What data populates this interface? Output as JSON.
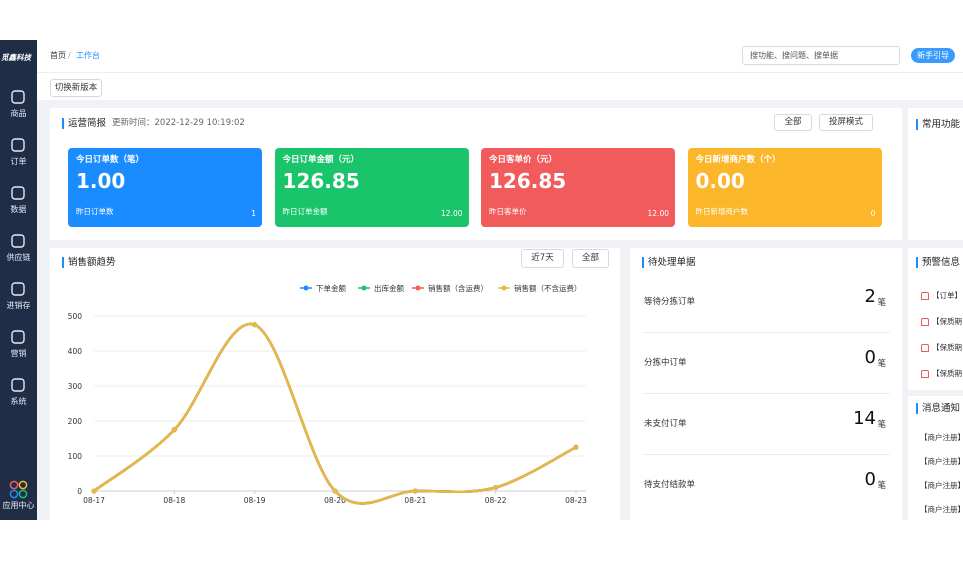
{
  "sidebar": {
    "logo": "觅鑫科技",
    "items": [
      "商品",
      "订单",
      "数据",
      "供应链",
      "进销存",
      "营销",
      "系统"
    ],
    "app_center": "应用中心"
  },
  "header": {
    "breadcrumb": [
      "首页",
      "工作台"
    ],
    "search_placeholder": "搜功能、搜问题、搜单据",
    "guide_button": "新手引导",
    "switch_button": "切换新版本"
  },
  "overview": {
    "title": "运营简报",
    "update_time": "更新时间：2022-12-29 10:19:02",
    "filter": "全部",
    "screen_mode": "投屏模式",
    "cards": [
      {
        "label": "今日订单数（笔）",
        "value": "1.00",
        "sub_label": "昨日订单数",
        "sub_value": "1",
        "color": "#1a8cff"
      },
      {
        "label": "今日订单金额（元）",
        "value": "126.85",
        "sub_label": "昨日订单金额",
        "sub_value": "12.00",
        "color": "#19c46b"
      },
      {
        "label": "今日客单价（元）",
        "value": "126.85",
        "sub_label": "昨日客单价",
        "sub_value": "12.00",
        "color": "#f25b5b"
      },
      {
        "label": "今日新增商户数（个）",
        "value": "0.00",
        "sub_label": "昨日新增商户数",
        "sub_value": "0",
        "color": "#fbb62a"
      }
    ]
  },
  "chart_data": {
    "type": "line",
    "title": "销售额趋势",
    "filters": [
      "近7天",
      "全部"
    ],
    "categories": [
      "08-17",
      "08-18",
      "08-19",
      "08-20",
      "08-21",
      "08-22",
      "08-23"
    ],
    "series": [
      {
        "name": "下单金额",
        "color": "#1a8cff",
        "values": [
          0,
          175,
          475,
          0,
          0,
          10,
          125
        ]
      },
      {
        "name": "出库金额",
        "color": "#19c46b",
        "values": [
          0,
          175,
          475,
          0,
          0,
          10,
          125
        ]
      },
      {
        "name": "销售额（含运费）",
        "color": "#f25b5b",
        "values": [
          0,
          175,
          475,
          0,
          0,
          10,
          125
        ]
      },
      {
        "name": "销售额（不含运费）",
        "color": "#e8b845",
        "values": [
          0,
          175,
          475,
          0,
          0,
          10,
          125
        ]
      }
    ],
    "ylim": [
      0,
      500
    ],
    "yticks": [
      0,
      100,
      200,
      300,
      400,
      500
    ],
    "grid": true
  },
  "pending": {
    "title": "待处理单据",
    "rows": [
      {
        "label": "等待分拣订单",
        "value": 2,
        "unit": "笔"
      },
      {
        "label": "分拣中订单",
        "value": 0,
        "unit": "笔"
      },
      {
        "label": "未支付订单",
        "value": 14,
        "unit": "笔"
      },
      {
        "label": "待支付结款单",
        "value": 0,
        "unit": "笔"
      }
    ]
  },
  "common": {
    "title": "常用功能"
  },
  "warnings": {
    "title": "预警信息",
    "items": [
      "【订单】",
      "【保质期",
      "【保质期",
      "【保质期"
    ]
  },
  "notices": {
    "title": "消息通知",
    "items": [
      "【商户注册】",
      "【商户注册】",
      "【商户注册】",
      "【商户注册】"
    ]
  }
}
